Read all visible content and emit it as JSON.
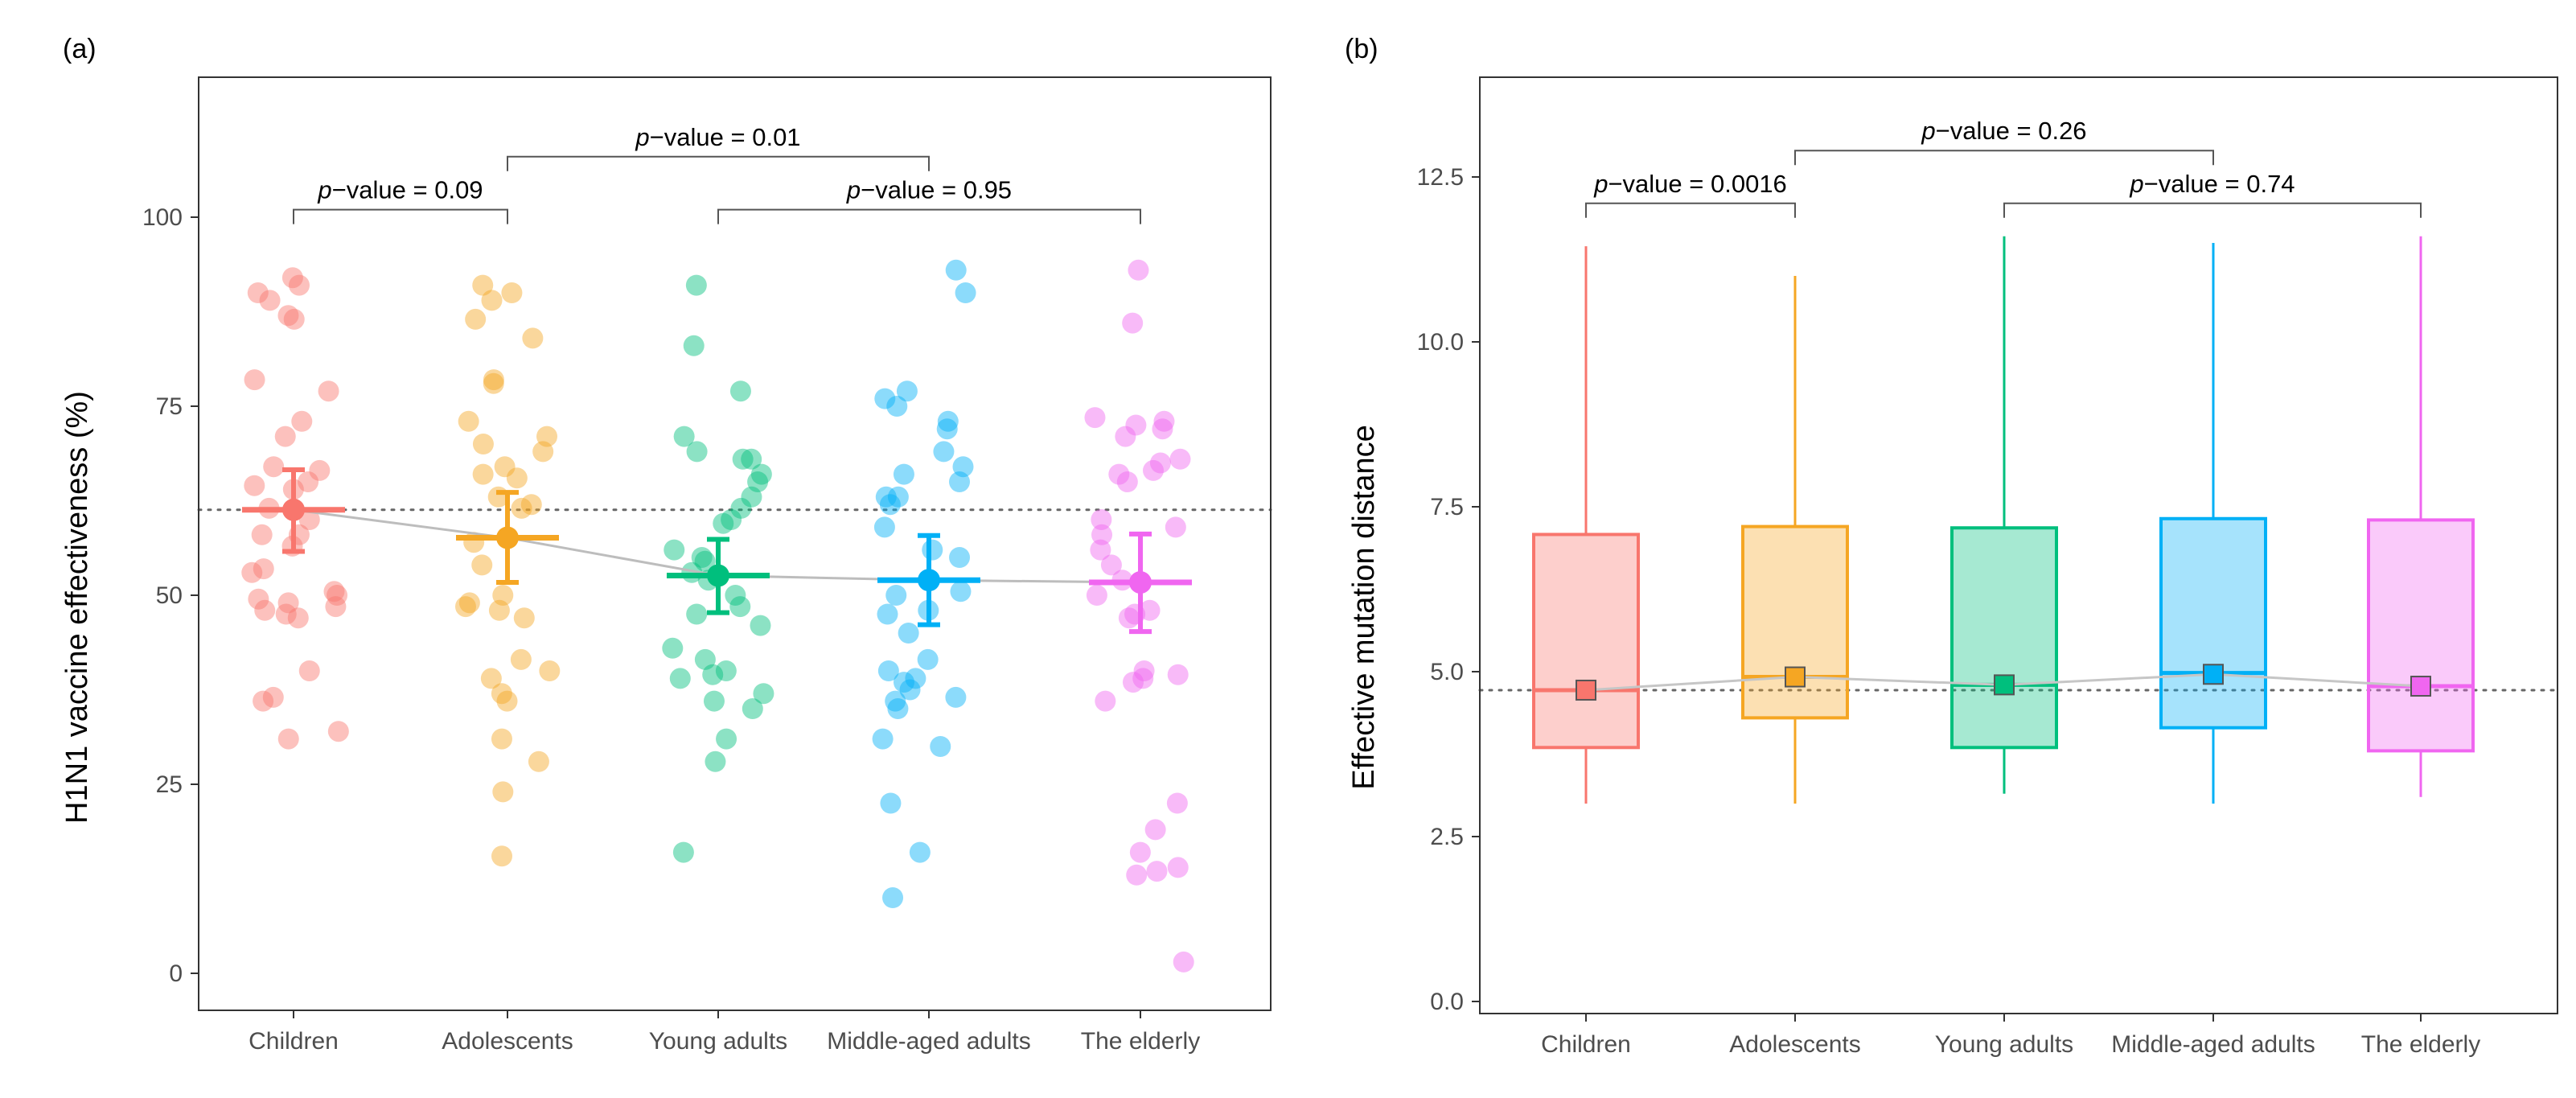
{
  "colors": {
    "Children": "#F8766D",
    "Adolescents": "#F5A623",
    "Young adults": "#00BF7D",
    "Middle-aged adults": "#00B0F6",
    "The elderly": "#F066F0",
    "grid_line": "#c8c8c8",
    "frame": "#333333"
  },
  "chart_data": [
    {
      "panel": "(a)",
      "type": "scatter",
      "ylabel": "H1N1 vaccine effectiveness (%)",
      "xlabel": "",
      "ylim": [
        -5,
        115
      ],
      "yticks": [
        0,
        25,
        50,
        75,
        100
      ],
      "categories": [
        "Children",
        "Adolescents",
        "Young adults",
        "Middle-aged adults",
        "The elderly"
      ],
      "reference_line": 61.3,
      "summary": [
        {
          "category": "Children",
          "mean": 61.3,
          "ci_low": 55.8,
          "ci_high": 66.6
        },
        {
          "category": "Adolescents",
          "mean": 57.6,
          "ci_low": 51.7,
          "ci_high": 63.6
        },
        {
          "category": "Young adults",
          "mean": 52.6,
          "ci_low": 47.7,
          "ci_high": 57.4
        },
        {
          "category": "Middle-aged adults",
          "mean": 52.0,
          "ci_low": 46.1,
          "ci_high": 57.9
        },
        {
          "category": "The elderly",
          "mean": 51.7,
          "ci_low": 45.2,
          "ci_high": 58.1
        }
      ],
      "points": [
        {
          "category": "Children",
          "values": [
            92,
            91,
            90,
            89,
            87,
            86.5,
            78.5,
            77,
            73,
            71,
            67,
            66.5,
            65,
            64.5,
            64,
            61.5,
            60,
            58,
            58,
            56.5,
            53.5,
            53,
            50.5,
            50,
            49.5,
            49,
            48.5,
            48,
            47.5,
            47,
            40,
            36.5,
            36,
            32,
            31
          ]
        },
        {
          "category": "Adolescents",
          "values": [
            91,
            90,
            89,
            86.5,
            84,
            78.5,
            78,
            73,
            71,
            70,
            69,
            67,
            66,
            65.5,
            63,
            62,
            61.5,
            57,
            54,
            50,
            49,
            48.5,
            48,
            47,
            41.5,
            40,
            39,
            37,
            36,
            31,
            28,
            24,
            15.5
          ]
        },
        {
          "category": "Young adults",
          "values": [
            91,
            83,
            77,
            71,
            69,
            68,
            68,
            66,
            65,
            63,
            61.5,
            60,
            59.5,
            56,
            55,
            54.5,
            53,
            52,
            50,
            48.5,
            47.5,
            46,
            43,
            41.5,
            40,
            39.5,
            39,
            37,
            36,
            35,
            31,
            28,
            16
          ]
        },
        {
          "category": "Middle-aged adults",
          "values": [
            93,
            90,
            77,
            76,
            75,
            73,
            72,
            69,
            67,
            66,
            65,
            63,
            63,
            62,
            59,
            56,
            55,
            50.5,
            50,
            48,
            47.5,
            45,
            41.5,
            40,
            39,
            38.5,
            37.5,
            36.5,
            36,
            35,
            31,
            30,
            22.5,
            16,
            10
          ]
        },
        {
          "category": "The elderly",
          "values": [
            93,
            86,
            73.5,
            73,
            72.5,
            72,
            71,
            68,
            67.5,
            66.5,
            66,
            65,
            60,
            59,
            58,
            56,
            54,
            52,
            50,
            48,
            47.5,
            47,
            40,
            39.5,
            39,
            38.5,
            36,
            22.5,
            19,
            16,
            14,
            13.5,
            13,
            1.5
          ]
        }
      ],
      "annotations": [
        {
          "from": "Children",
          "to": "Adolescents",
          "label": "p−value = 0.09",
          "y": 101
        },
        {
          "from": "Adolescents",
          "to": "Middle-aged adults",
          "label": "p−value = 0.01",
          "y": 108
        },
        {
          "from": "Young adults",
          "to": "The elderly",
          "label": "p−value = 0.95",
          "y": 101
        }
      ]
    },
    {
      "panel": "(b)",
      "type": "box",
      "ylabel": "Effective mutation distance",
      "xlabel": "",
      "ylim": [
        -0.2,
        14
      ],
      "yticks": [
        0,
        2.5,
        5,
        7.5,
        10,
        12.5
      ],
      "ytick_labels": [
        "0.0",
        "2.5",
        "5.0",
        "7.5",
        "10.0",
        "12.5"
      ],
      "categories": [
        "Children",
        "Adolescents",
        "Young adults",
        "Middle-aged adults",
        "The elderly"
      ],
      "reference_line": 4.72,
      "boxes": [
        {
          "category": "Children",
          "min": 3.0,
          "q1": 3.85,
          "median": 4.72,
          "q3": 7.08,
          "max": 11.45,
          "mean": 4.72
        },
        {
          "category": "Adolescents",
          "min": 3.0,
          "q1": 4.3,
          "median": 4.92,
          "q3": 7.2,
          "max": 11.0,
          "mean": 4.92
        },
        {
          "category": "Young adults",
          "min": 3.15,
          "q1": 3.85,
          "median": 4.8,
          "q3": 7.18,
          "max": 11.6,
          "mean": 4.8
        },
        {
          "category": "Middle-aged adults",
          "min": 3.0,
          "q1": 4.15,
          "median": 4.98,
          "q3": 7.32,
          "max": 11.5,
          "mean": 4.96
        },
        {
          "category": "The elderly",
          "min": 3.1,
          "q1": 3.8,
          "median": 4.78,
          "q3": 7.3,
          "max": 11.6,
          "mean": 4.78
        }
      ],
      "annotations": [
        {
          "from": "Children",
          "to": "Adolescents",
          "label": "p−value = 0.0016",
          "y": 12.1
        },
        {
          "from": "Adolescents",
          "to": "Middle-aged adults",
          "label": "p−value = 0.26",
          "y": 12.9
        },
        {
          "from": "Young adults",
          "to": "The elderly",
          "label": "p−value = 0.74",
          "y": 12.1
        }
      ]
    }
  ]
}
